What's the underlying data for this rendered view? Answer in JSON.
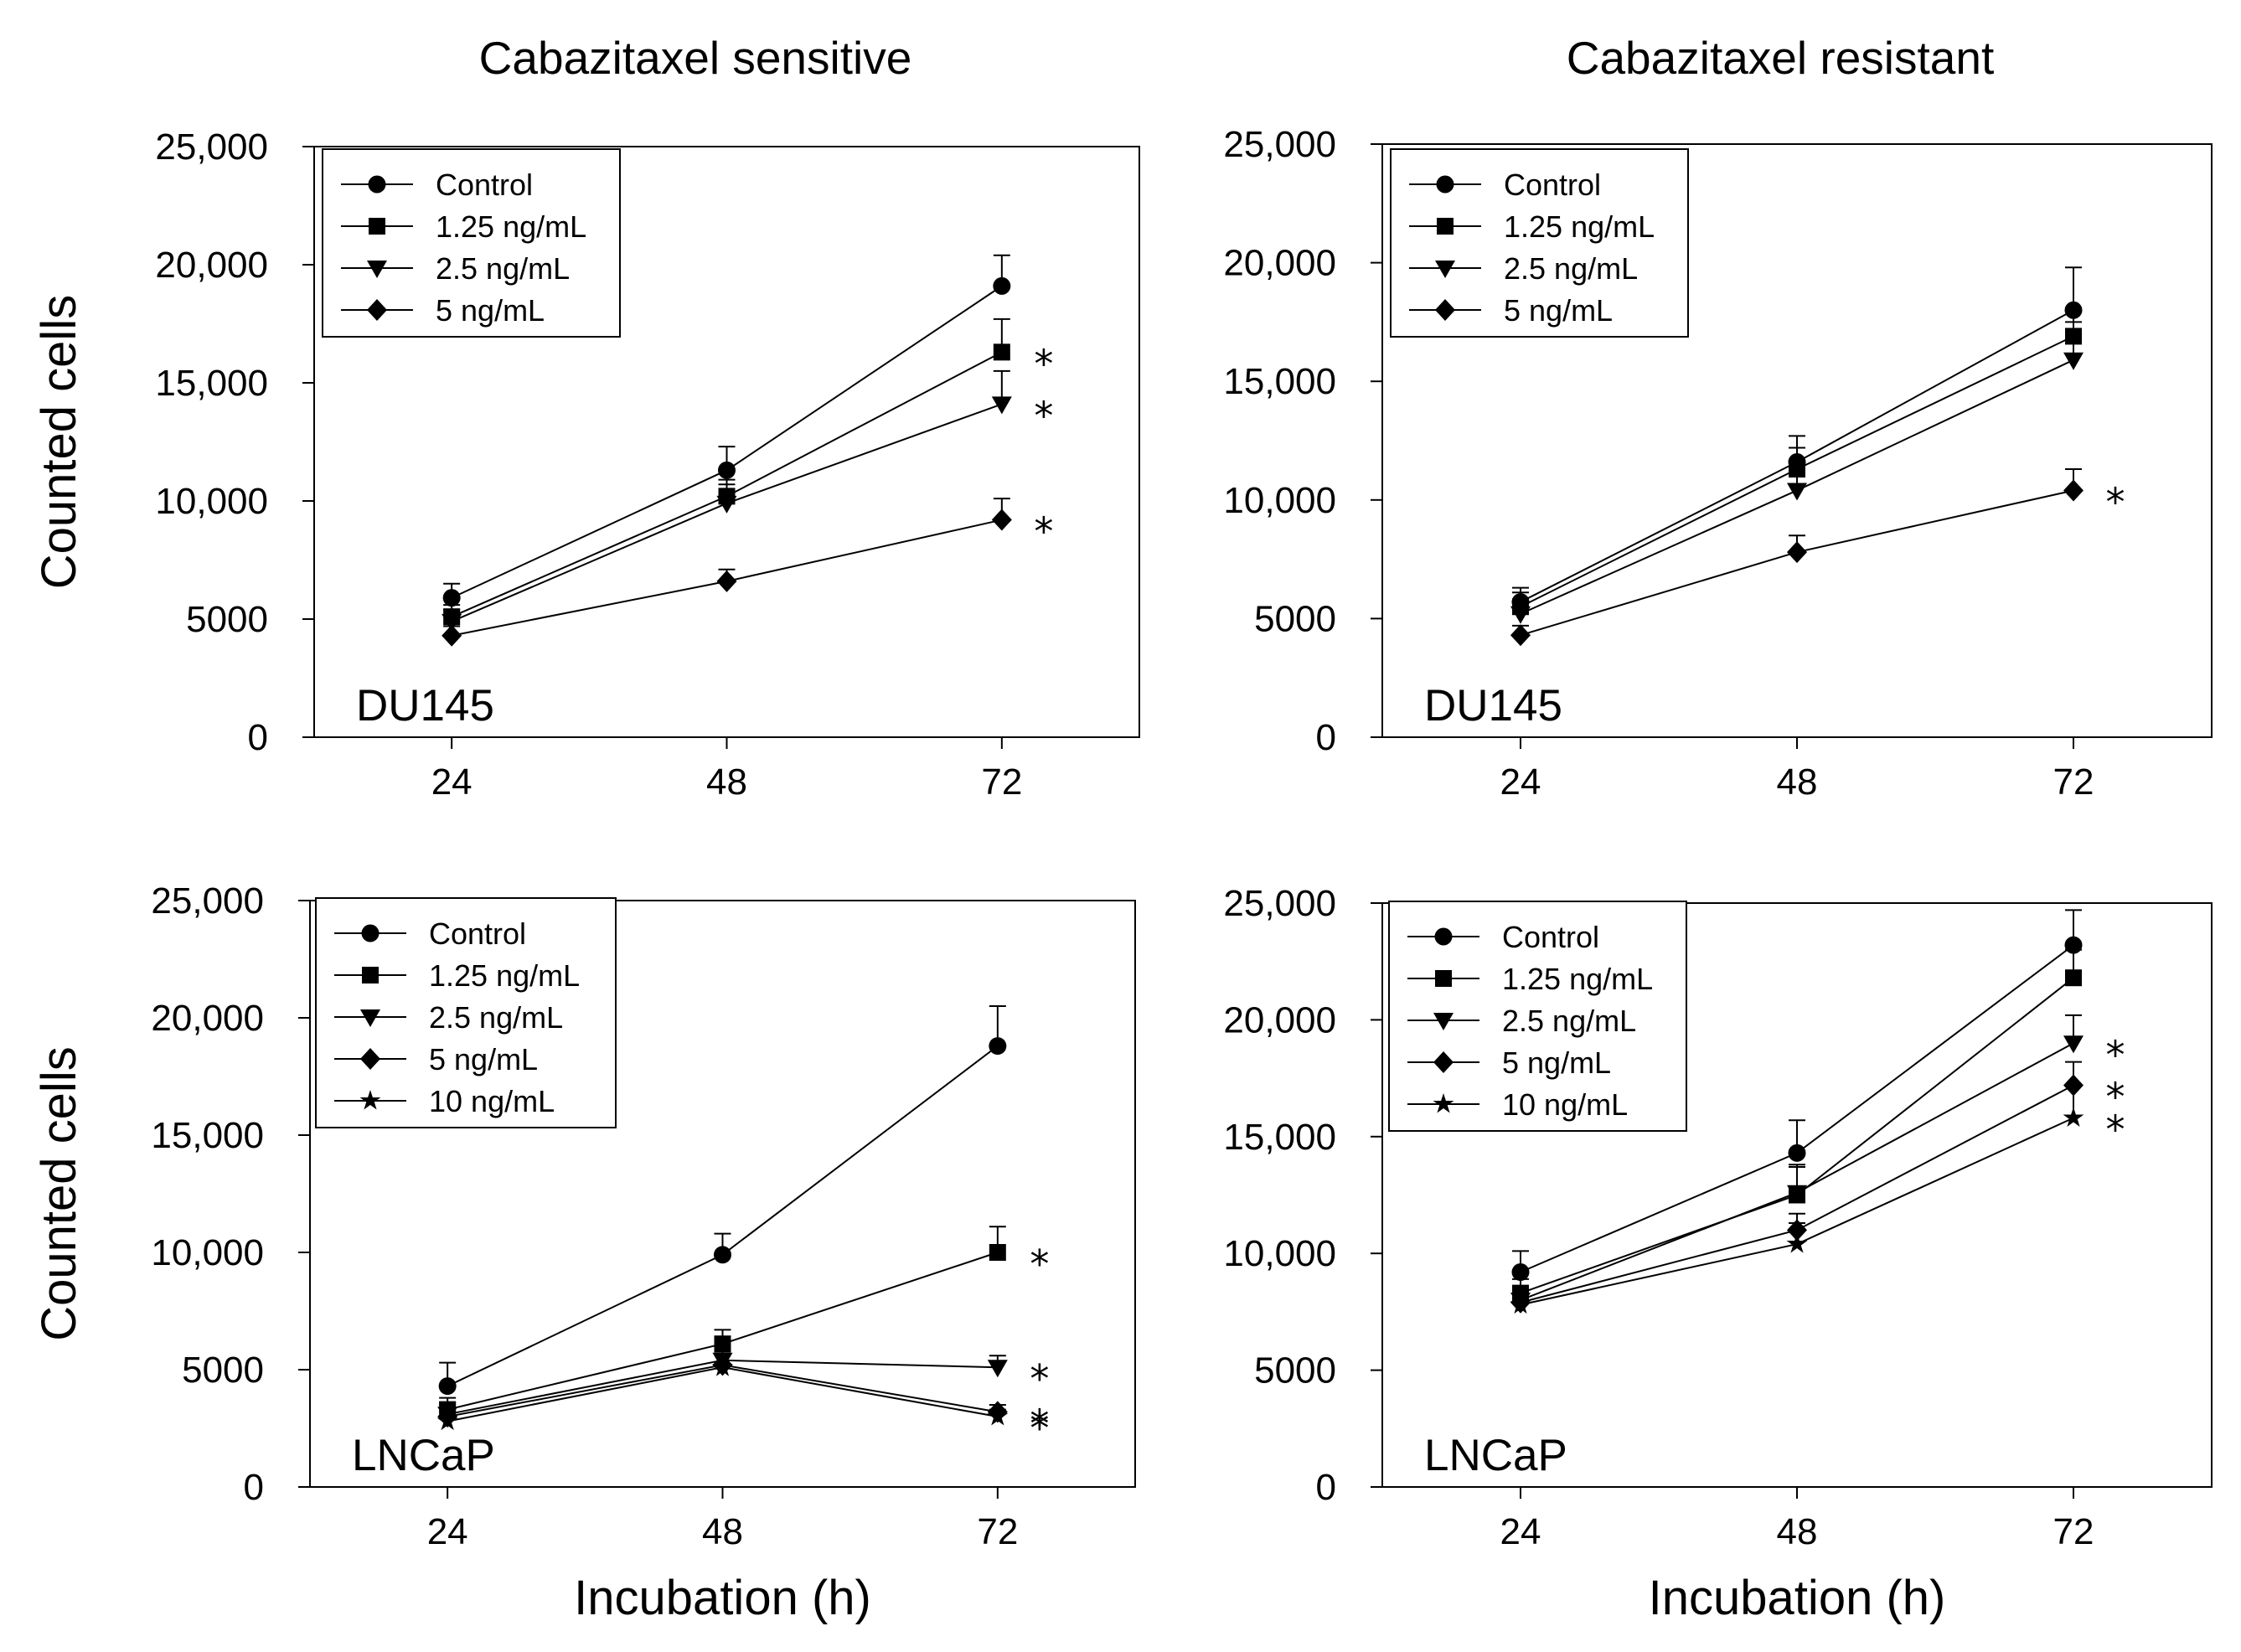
{
  "figure": {
    "column_titles": [
      "Cabazitaxel sensitive",
      "Cabazitaxel resistant"
    ],
    "ylabel": "Counted cells",
    "xlabel": "Incubation (h)"
  },
  "chart_data": [
    {
      "type": "line",
      "position": "top-left",
      "title": "Cabazitaxel sensitive",
      "panel_label": "DU145",
      "ylabel": "Counted cells",
      "xlabel": "",
      "x": [
        24,
        48,
        72
      ],
      "x_tick_labels": [
        "24",
        "48",
        "72"
      ],
      "ylim": [
        0,
        25000
      ],
      "y_ticks": [
        0,
        5000,
        10000,
        15000,
        20000,
        25000
      ],
      "y_tick_labels": [
        "0",
        "5000",
        "10,000",
        "15,000",
        "20,000",
        "25,000"
      ],
      "legend_position": "top-left",
      "series": [
        {
          "name": "Control",
          "marker": "circle",
          "values": [
            5900,
            11300,
            19100
          ],
          "errors": [
            600,
            1000,
            1300
          ],
          "significant": [
            false,
            false,
            false
          ]
        },
        {
          "name": "1.25 ng/mL",
          "marker": "square",
          "values": [
            5100,
            10200,
            16300
          ],
          "errors": [
            500,
            700,
            1400
          ],
          "significant": [
            false,
            false,
            true
          ]
        },
        {
          "name": "2.5 ng/mL",
          "marker": "triangle-down",
          "values": [
            4900,
            9900,
            14100
          ],
          "errors": [
            500,
            800,
            1400
          ],
          "significant": [
            false,
            false,
            true
          ]
        },
        {
          "name": "5 ng/mL",
          "marker": "diamond",
          "values": [
            4300,
            6600,
            9200
          ],
          "errors": [
            400,
            500,
            900
          ],
          "significant": [
            false,
            false,
            true
          ]
        }
      ],
      "significance_marker": "*"
    },
    {
      "type": "line",
      "position": "top-right",
      "title": "Cabazitaxel resistant",
      "panel_label": "DU145",
      "ylabel": "",
      "xlabel": "",
      "x": [
        24,
        48,
        72
      ],
      "x_tick_labels": [
        "24",
        "48",
        "72"
      ],
      "ylim": [
        0,
        25000
      ],
      "y_ticks": [
        0,
        5000,
        10000,
        15000,
        20000,
        25000
      ],
      "y_tick_labels": [
        "0",
        "5000",
        "10,000",
        "15,000",
        "20,000",
        "25,000"
      ],
      "legend_position": "top-left",
      "series": [
        {
          "name": "Control",
          "marker": "circle",
          "values": [
            5700,
            11600,
            18000
          ],
          "errors": [
            600,
            1100,
            1800
          ],
          "significant": [
            false,
            false,
            false
          ]
        },
        {
          "name": "1.25 ng/mL",
          "marker": "square",
          "values": [
            5500,
            11300,
            16900
          ],
          "errors": [
            600,
            900,
            1200
          ],
          "significant": [
            false,
            false,
            false
          ]
        },
        {
          "name": "2.5 ng/mL",
          "marker": "triangle-down",
          "values": [
            5200,
            10400,
            15900
          ],
          "errors": [
            600,
            900,
            1600
          ],
          "significant": [
            false,
            false,
            false
          ]
        },
        {
          "name": "5 ng/mL",
          "marker": "diamond",
          "values": [
            4300,
            7800,
            10400
          ],
          "errors": [
            400,
            700,
            900
          ],
          "significant": [
            false,
            false,
            true
          ]
        }
      ],
      "significance_marker": "*"
    },
    {
      "type": "line",
      "position": "bottom-left",
      "title": "",
      "panel_label": "LNCaP",
      "ylabel": "Counted cells",
      "xlabel": "Incubation (h)",
      "x": [
        24,
        48,
        72
      ],
      "x_tick_labels": [
        "24",
        "48",
        "72"
      ],
      "ylim": [
        0,
        25000
      ],
      "y_ticks": [
        0,
        5000,
        10000,
        15000,
        20000,
        25000
      ],
      "y_tick_labels": [
        "0",
        "5000",
        "10,000",
        "15,000",
        "20,000",
        "25,000"
      ],
      "legend_position": "top-left",
      "series": [
        {
          "name": "Control",
          "marker": "circle",
          "values": [
            4300,
            9900,
            18800
          ],
          "errors": [
            1000,
            900,
            1700
          ],
          "significant": [
            false,
            false,
            false
          ]
        },
        {
          "name": "1.25 ng/mL",
          "marker": "square",
          "values": [
            3300,
            6100,
            10000
          ],
          "errors": [
            500,
            600,
            1100
          ],
          "significant": [
            false,
            false,
            true
          ]
        },
        {
          "name": "2.5 ng/mL",
          "marker": "triangle-down",
          "values": [
            3100,
            5400,
            5100
          ],
          "errors": [
            500,
            600,
            500
          ],
          "significant": [
            false,
            false,
            true
          ]
        },
        {
          "name": "5 ng/mL",
          "marker": "diamond",
          "values": [
            3000,
            5200,
            3200
          ],
          "errors": [
            500,
            600,
            300
          ],
          "significant": [
            false,
            false,
            true
          ]
        },
        {
          "name": "10 ng/mL",
          "marker": "star",
          "values": [
            2800,
            5100,
            3000
          ],
          "errors": [
            400,
            600,
            300
          ],
          "significant": [
            false,
            false,
            true
          ]
        }
      ],
      "significance_marker": "*"
    },
    {
      "type": "line",
      "position": "bottom-right",
      "title": "",
      "panel_label": "LNCaP",
      "ylabel": "",
      "xlabel": "Incubation (h)",
      "x": [
        24,
        48,
        72
      ],
      "x_tick_labels": [
        "24",
        "48",
        "72"
      ],
      "ylim": [
        0,
        25000
      ],
      "y_ticks": [
        0,
        5000,
        10000,
        15000,
        20000,
        25000
      ],
      "y_tick_labels": [
        "0",
        "5000",
        "10,000",
        "15,000",
        "20,000",
        "25,000"
      ],
      "legend_position": "top-left",
      "series": [
        {
          "name": "Control",
          "marker": "circle",
          "values": [
            9200,
            14300,
            23200
          ],
          "errors": [
            900,
            1400,
            1500
          ],
          "significant": [
            false,
            false,
            false
          ]
        },
        {
          "name": "1.25 ng/mL",
          "marker": "square",
          "values": [
            8300,
            12500,
            21800
          ],
          "errors": [
            600,
            1200,
            1200
          ],
          "significant": [
            false,
            false,
            false
          ]
        },
        {
          "name": "2.5 ng/mL",
          "marker": "triangle-down",
          "values": [
            8000,
            12600,
            19000
          ],
          "errors": [
            600,
            1200,
            1200
          ],
          "significant": [
            false,
            false,
            true
          ]
        },
        {
          "name": "5 ng/mL",
          "marker": "diamond",
          "values": [
            7900,
            11000,
            17200
          ],
          "errors": [
            600,
            700,
            1000
          ],
          "significant": [
            false,
            false,
            true
          ]
        },
        {
          "name": "10 ng/mL",
          "marker": "star",
          "values": [
            7800,
            10400,
            15800
          ],
          "errors": [
            600,
            900,
            1400
          ],
          "significant": [
            false,
            false,
            true
          ]
        }
      ],
      "significance_marker": "*"
    }
  ]
}
